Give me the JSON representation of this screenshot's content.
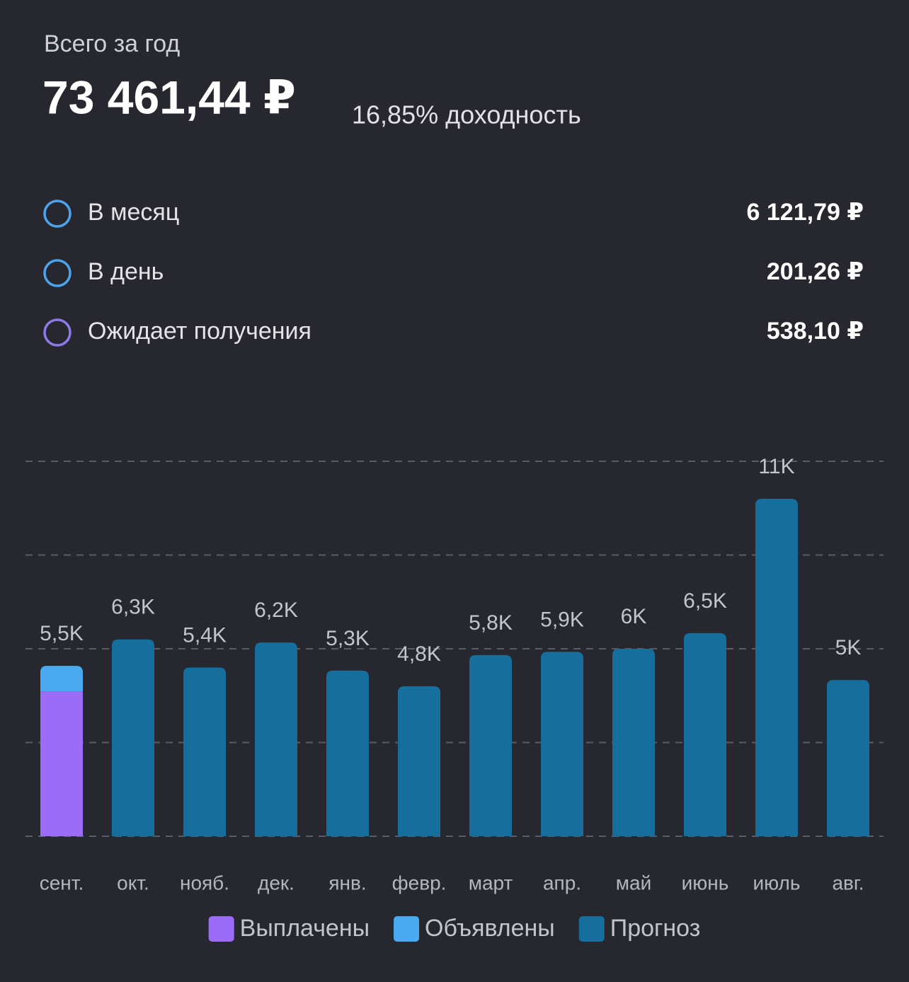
{
  "header": {
    "label": "Всего за год",
    "total": "73 461,44 ₽",
    "yield": "16,85% доходность"
  },
  "stats": [
    {
      "label": "В месяц",
      "value": "6 121,79 ₽",
      "color": "#4ea4ec"
    },
    {
      "label": "В день",
      "value": "201,26 ₽",
      "color": "#4ea4ec"
    },
    {
      "label": "Ожидает получения",
      "value": "538,10 ₽",
      "color": "#8d79e8"
    }
  ],
  "chart_data": {
    "type": "stacked-bar",
    "categories": [
      "сент.",
      "окт.",
      "нояб.",
      "дек.",
      "янв.",
      "февр.",
      "март",
      "апр.",
      "май",
      "июнь",
      "июль",
      "авг."
    ],
    "series": [
      {
        "name": "Выплачены",
        "color": "#9b6cf7",
        "values": [
          4640,
          0,
          0,
          0,
          0,
          0,
          0,
          0,
          0,
          0,
          0,
          0
        ]
      },
      {
        "name": "Объявлены",
        "color": "#4aaaf0",
        "values": [
          815,
          0,
          0,
          0,
          0,
          0,
          0,
          0,
          0,
          0,
          0,
          0
        ]
      },
      {
        "name": "Прогноз",
        "color": "#156e9b",
        "values": [
          0,
          6300,
          5400,
          6200,
          5300,
          4800,
          5800,
          5900,
          6000,
          6500,
          10800,
          5000
        ]
      }
    ],
    "value_labels": [
      "5,5K",
      "6,3K",
      "5,4K",
      "6,2K",
      "5,3K",
      "4,8K",
      "5,8K",
      "5,9K",
      "6K",
      "6,5K",
      "11K",
      "5K"
    ],
    "ylim": [
      0,
      12000
    ],
    "yticks": [
      0,
      3000,
      6000,
      9000,
      12000
    ],
    "grid": true
  }
}
